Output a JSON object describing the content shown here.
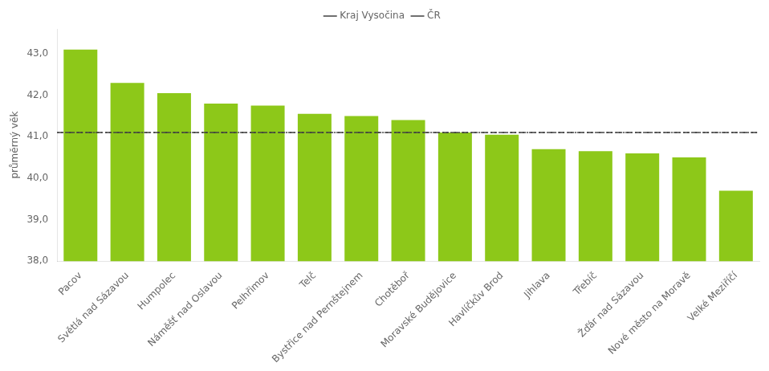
{
  "chart_data": {
    "type": "bar",
    "categories": [
      "Pacov",
      "Světlá nad Sázavou",
      "Humpolec",
      "Náměšť nad Oslavou",
      "Pelhřimov",
      "Telč",
      "Bystřice nad Pernštejnem",
      "Chotěboř",
      "Moravské Budějovice",
      "Havlíčkův Brod",
      "Jihlava",
      "Třebíč",
      "Žďár nad Sázavou",
      "Nové město na Moravě",
      "Velké Meziříčí"
    ],
    "values": [
      43.1,
      42.3,
      42.05,
      41.8,
      41.75,
      41.55,
      41.5,
      41.4,
      41.1,
      41.05,
      40.7,
      40.65,
      40.6,
      40.5,
      39.7
    ],
    "color": "#8DC819",
    "ylabel": "průměrný věk",
    "ylim": [
      38.0,
      43.6
    ],
    "yticks": [
      {
        "value": 38.0,
        "label": "38,0"
      },
      {
        "value": 39.0,
        "label": "39,0"
      },
      {
        "value": 40.0,
        "label": "40,0"
      },
      {
        "value": 41.0,
        "label": "41,0"
      },
      {
        "value": 42.0,
        "label": "42,0"
      },
      {
        "value": 43.0,
        "label": "43,0"
      }
    ],
    "grid": false,
    "legend": "top",
    "reference_lines": [
      {
        "name": "Kraj Vysočina",
        "value": 41.1,
        "color": "#404040",
        "line_style": "dashed"
      },
      {
        "name": "ČR",
        "value": 41.1,
        "color": "#404040",
        "line_style": "dotted"
      }
    ]
  }
}
